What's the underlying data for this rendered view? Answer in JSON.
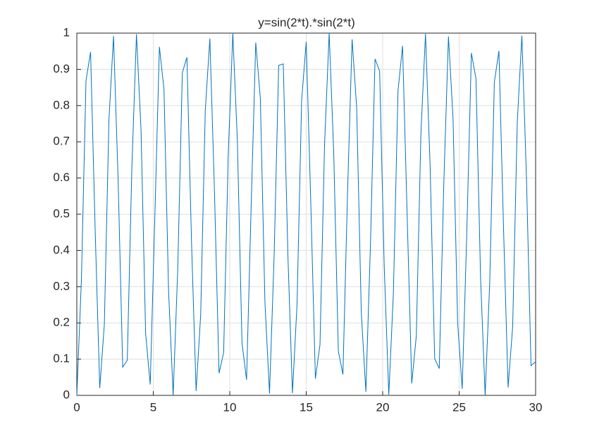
{
  "chart_data": {
    "type": "line",
    "title": "y=sin(2*t).*sin(2*t)",
    "x": [
      0,
      0.3,
      0.6,
      0.9,
      1.2,
      1.5,
      1.8,
      2.1,
      2.4,
      2.7,
      3.0,
      3.3,
      3.6,
      3.9,
      4.2,
      4.5,
      4.8,
      5.1,
      5.4,
      5.7,
      6.0,
      6.3,
      6.6,
      6.9,
      7.2,
      7.5,
      7.8,
      8.1,
      8.4,
      8.7,
      9.0,
      9.3,
      9.6,
      9.9,
      10.2,
      10.5,
      10.8,
      11.1,
      11.4,
      11.7,
      12.0,
      12.3,
      12.6,
      12.9,
      13.2,
      13.5,
      13.8,
      14.1,
      14.4,
      14.7,
      15.0,
      15.3,
      15.6,
      15.9,
      16.2,
      16.5,
      16.8,
      17.1,
      17.4,
      17.7,
      18.0,
      18.3,
      18.6,
      18.9,
      19.2,
      19.5,
      19.8,
      20.1,
      20.4,
      20.7,
      21.0,
      21.3,
      21.6,
      21.9,
      22.2,
      22.5,
      22.8,
      23.1,
      23.4,
      23.7,
      24.0,
      24.3,
      24.6,
      24.9,
      25.2,
      25.5,
      25.8,
      26.1,
      26.4,
      26.7,
      27.0,
      27.3,
      27.6,
      27.9,
      28.2,
      28.5,
      28.8,
      29.1,
      29.4,
      29.7,
      30.0
    ],
    "series": [
      {
        "color": "#0072bd",
        "values": [
          0,
          0.319,
          0.869,
          0.948,
          0.456,
          0.02,
          0.196,
          0.76,
          0.992,
          0.597,
          0.078,
          0.097,
          0.63,
          0.997,
          0.731,
          0.17,
          0.03,
          0.49,
          0.962,
          0.845,
          0.288,
          0.001,
          0.35,
          0.891,
          0.933,
          0.423,
          0.012,
          0.223,
          0.788,
          0.985,
          0.564,
          0.061,
          0.118,
          0.662,
          1.0,
          0.7,
          0.145,
          0.043,
          0.523,
          0.974,
          0.82,
          0.258,
          0.005,
          0.383,
          0.911,
          0.915,
          0.39,
          0.006,
          0.252,
          0.814,
          0.976,
          0.53,
          0.046,
          0.14,
          0.693,
          1.0,
          0.669,
          0.122,
          0.058,
          0.557,
          0.983,
          0.794,
          0.229,
          0.01,
          0.416,
          0.929,
          0.895,
          0.357,
          0.002,
          0.282,
          0.84,
          0.965,
          0.497,
          0.033,
          0.165,
          0.724,
          0.998,
          0.636,
          0.101,
          0.074,
          0.59,
          0.991,
          0.766,
          0.202,
          0.018,
          0.449,
          0.945,
          0.874,
          0.326,
          0.0,
          0.312,
          0.864,
          0.951,
          0.464,
          0.022,
          0.19,
          0.753,
          0.993,
          0.604,
          0.082,
          0.093
        ]
      }
    ],
    "xlim": [
      0,
      30
    ],
    "xticks": [
      0,
      5,
      10,
      15,
      20,
      25,
      30
    ],
    "ylim": [
      0,
      1
    ],
    "yticks": [
      0,
      0.1,
      0.2,
      0.3,
      0.4,
      0.5,
      0.6,
      0.7,
      0.8,
      0.9,
      1
    ],
    "grid": true
  }
}
